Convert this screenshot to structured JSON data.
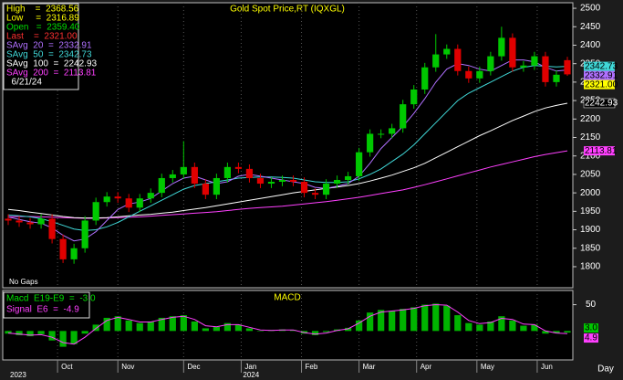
{
  "chart_data": {
    "type": "candlestick",
    "title": "Gold Spot Price,RT (IQXGL)",
    "x": [
      0,
      4,
      8,
      12,
      16,
      20,
      24,
      28,
      32,
      36,
      40,
      44,
      48,
      52,
      56,
      60,
      64,
      68,
      72,
      76,
      80,
      84,
      88,
      92,
      96,
      100,
      104,
      108,
      112,
      116,
      120,
      124,
      128,
      132,
      136,
      140,
      144,
      148,
      152,
      156,
      160,
      164,
      168,
      172,
      176,
      180,
      184,
      188,
      192,
      196,
      200,
      204
    ],
    "open": [
      1930,
      1925,
      1920,
      1915,
      1930,
      1875,
      1820,
      1850,
      1925,
      1975,
      1990,
      1985,
      1960,
      1985,
      2000,
      2040,
      2050,
      2070,
      2025,
      1995,
      2040,
      2070,
      2065,
      2040,
      2025,
      2030,
      2035,
      2030,
      2000,
      1995,
      2025,
      2035,
      2045,
      2110,
      2160,
      2160,
      2175,
      2240,
      2280,
      2340,
      2375,
      2390,
      2330,
      2310,
      2330,
      2370,
      2420,
      2340,
      2345,
      2370,
      2300,
      2359.4
    ],
    "high": [
      1942,
      1937,
      1932,
      1942,
      1942,
      1887,
      1862,
      1937,
      1987,
      2002,
      2002,
      1997,
      1997,
      2012,
      2052,
      2062,
      2140,
      2082,
      2037,
      2052,
      2082,
      2082,
      2077,
      2052,
      2042,
      2047,
      2047,
      2042,
      2012,
      2037,
      2047,
      2057,
      2122,
      2172,
      2172,
      2187,
      2252,
      2292,
      2352,
      2430,
      2402,
      2402,
      2342,
      2342,
      2382,
      2450,
      2432,
      2357,
      2382,
      2382,
      2332,
      2368.56
    ],
    "low": [
      1913,
      1908,
      1903,
      1903,
      1863,
      1810,
      1808,
      1838,
      1913,
      1963,
      1973,
      1948,
      1948,
      1973,
      1988,
      2028,
      2038,
      2013,
      1983,
      1983,
      2028,
      2053,
      2028,
      2013,
      2013,
      2018,
      2018,
      1988,
      1983,
      1983,
      2013,
      2023,
      2033,
      2098,
      2148,
      2148,
      2163,
      2228,
      2268,
      2328,
      2363,
      2318,
      2298,
      2298,
      2318,
      2358,
      2328,
      2328,
      2333,
      2288,
      2288,
      2316.89
    ],
    "close": [
      1925,
      1920,
      1915,
      1930,
      1875,
      1820,
      1850,
      1925,
      1975,
      1990,
      1985,
      1960,
      1985,
      2000,
      2040,
      2050,
      2070,
      2025,
      1995,
      2040,
      2070,
      2065,
      2040,
      2025,
      2030,
      2035,
      2030,
      2000,
      1995,
      2025,
      2035,
      2045,
      2110,
      2160,
      2160,
      2175,
      2240,
      2280,
      2340,
      2375,
      2390,
      2330,
      2310,
      2330,
      2370,
      2420,
      2340,
      2345,
      2370,
      2300,
      2320,
      2321.0
    ],
    "up_color": "#00c800",
    "down_color": "#e00000",
    "series": [
      {
        "name": "SAvg 20",
        "color": "#b070ff",
        "values": [
          1935,
          1928,
          1922,
          1918,
          1905,
          1885,
          1870,
          1875,
          1895,
          1925,
          1955,
          1970,
          1975,
          1985,
          2005,
          2025,
          2040,
          2045,
          2035,
          2025,
          2030,
          2045,
          2050,
          2045,
          2040,
          2035,
          2030,
          2025,
          2015,
          2012,
          2018,
          2025,
          2045,
          2080,
          2120,
          2150,
          2180,
          2215,
          2255,
          2300,
          2335,
          2350,
          2345,
          2335,
          2330,
          2345,
          2360,
          2360,
          2355,
          2340,
          2330,
          2332.91
        ]
      },
      {
        "name": "SAvg 50",
        "color": "#40d8d8",
        "values": [
          1940,
          1938,
          1935,
          1930,
          1922,
          1912,
          1902,
          1898,
          1900,
          1908,
          1920,
          1935,
          1950,
          1965,
          1980,
          1995,
          2010,
          2020,
          2025,
          2030,
          2035,
          2040,
          2042,
          2043,
          2043,
          2042,
          2040,
          2035,
          2030,
          2028,
          2028,
          2030,
          2038,
          2050,
          2065,
          2085,
          2105,
          2130,
          2160,
          2190,
          2220,
          2250,
          2270,
          2285,
          2300,
          2315,
          2330,
          2340,
          2345,
          2343,
          2341,
          2342.73
        ]
      },
      {
        "name": "SAvg 100",
        "color": "#ffffff",
        "values": [
          1955,
          1952,
          1948,
          1944,
          1940,
          1936,
          1933,
          1932,
          1932,
          1933,
          1935,
          1938,
          1940,
          1942,
          1945,
          1948,
          1952,
          1956,
          1960,
          1965,
          1970,
          1975,
          1980,
          1985,
          1990,
          1995,
          2000,
          2004,
          2008,
          2012,
          2016,
          2020,
          2025,
          2032,
          2040,
          2048,
          2058,
          2068,
          2080,
          2095,
          2110,
          2125,
          2140,
          2155,
          2168,
          2182,
          2196,
          2208,
          2220,
          2230,
          2237,
          2242.93
        ]
      },
      {
        "name": "SAvg 200",
        "color": "#ff40ff",
        "values": [
          1935,
          1936,
          1936,
          1935,
          1934,
          1933,
          1932,
          1931,
          1931,
          1932,
          1933,
          1934,
          1935,
          1937,
          1939,
          1941,
          1943,
          1945,
          1947,
          1949,
          1952,
          1955,
          1958,
          1960,
          1962,
          1964,
          1967,
          1970,
          1973,
          1976,
          1980,
          1984,
          1988,
          1993,
          1998,
          2003,
          2008,
          2015,
          2022,
          2030,
          2038,
          2046,
          2054,
          2062,
          2070,
          2077,
          2084,
          2091,
          2098,
          2104,
          2109,
          2113.81
        ]
      }
    ],
    "legend_lines": [
      {
        "text": "High    =  2368.56",
        "color": "#ffff00"
      },
      {
        "text": "Low     =  2316.89",
        "color": "#ffff00"
      },
      {
        "text": "Open   =  2359.40",
        "color": "#00e000"
      },
      {
        "text": "Last    =  2321.00",
        "color": "#ff3030"
      },
      {
        "text": "SAvg  20  =  2332.91",
        "color": "#b070ff"
      },
      {
        "text": "SAvg  50  =  2342.73",
        "color": "#40d8d8"
      },
      {
        "text": "SAvg  100  =  2242.93",
        "color": "#ffffff"
      },
      {
        "text": "SAvg  200  =  2113.81",
        "color": "#ff40ff"
      },
      {
        "text": "  6/21/24",
        "color": "#ffffff"
      }
    ],
    "price_tags": [
      {
        "value": 2342.73,
        "label": "2342.73",
        "color": "#40d8d8"
      },
      {
        "value": 2332.91,
        "label": "2332.91",
        "color": "#b070ff"
      },
      {
        "value": 2321.0,
        "label": "2321.00",
        "color": "#ffff00"
      },
      {
        "value": 2242.93,
        "label": "2242.93",
        "color": "#000000"
      },
      {
        "value": 2113.81,
        "label": "2113.81",
        "color": "#ff40ff"
      }
    ],
    "note": "No Gaps",
    "xlim": [
      -2,
      206
    ],
    "xticks": [
      {
        "value": 18,
        "label": "Oct"
      },
      {
        "value": 40,
        "label": "Nov"
      },
      {
        "value": 64,
        "label": "Dec"
      },
      {
        "value": 85,
        "label": "Jan"
      },
      {
        "value": 107,
        "label": "Feb"
      },
      {
        "value": 128,
        "label": "Mar"
      },
      {
        "value": 149,
        "label": "Apr"
      },
      {
        "value": 171,
        "label": "May"
      },
      {
        "value": 193,
        "label": "Jun"
      }
    ],
    "year_ticks": [
      {
        "value": 0,
        "label": "2023"
      },
      {
        "value": 85,
        "label": "2024"
      }
    ],
    "period": "Day",
    "ylim": [
      1743,
      2515
    ],
    "yticks": [
      1800,
      1850,
      1900,
      1950,
      2000,
      2050,
      2100,
      2150,
      2200,
      2250,
      2300,
      2350,
      2400,
      2450,
      2500
    ],
    "grid": "x",
    "macd": {
      "title": "MACD",
      "legend_lines": [
        {
          "text": "Macd  E19-E9  =  -3.0",
          "color": "#00e000"
        },
        {
          "text": "Signal  E6  =  -4.9",
          "color": "#ff40ff"
        }
      ],
      "histogram": {
        "color": "#00b400",
        "values": [
          -5,
          -8,
          -10,
          -6,
          -18,
          -30,
          -25,
          -5,
          12,
          25,
          28,
          20,
          15,
          18,
          25,
          28,
          30,
          18,
          5,
          8,
          15,
          12,
          5,
          0,
          2,
          3,
          2,
          -5,
          -8,
          -2,
          3,
          6,
          20,
          35,
          40,
          38,
          42,
          45,
          50,
          52,
          48,
          30,
          15,
          12,
          18,
          28,
          20,
          10,
          12,
          -5,
          -4,
          -3.0
        ]
      },
      "signal": {
        "color": "#ff40ff",
        "values": [
          -4,
          -6,
          -8,
          -7,
          -12,
          -22,
          -25,
          -12,
          5,
          20,
          26,
          22,
          17,
          17,
          22,
          26,
          28,
          22,
          10,
          8,
          12,
          12,
          7,
          2,
          1,
          2,
          2,
          -3,
          -6,
          -4,
          1,
          4,
          15,
          28,
          36,
          38,
          40,
          43,
          48,
          50,
          49,
          36,
          20,
          14,
          16,
          24,
          22,
          13,
          12,
          0,
          -4,
          -4.9
        ]
      },
      "tags": [
        {
          "label": "3.0",
          "color": "#00c800"
        },
        {
          "label": "4.9",
          "color": "#ff40ff"
        }
      ],
      "ylim": [
        -55,
        77
      ],
      "yticks": [
        50
      ]
    }
  }
}
